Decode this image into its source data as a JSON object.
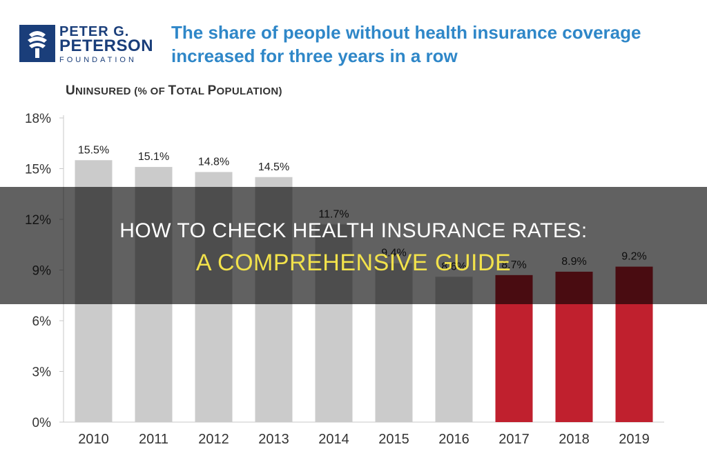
{
  "header": {
    "logo_line1": "PETER G.",
    "logo_line2": "PETERSON",
    "logo_line3": "FOUNDATION",
    "headline_line1": "The share of people without health insurance coverage",
    "headline_line2": "increased for three years in a row"
  },
  "banner": {
    "line1": "HOW TO CHECK HEALTH INSURANCE RATES:",
    "line2": "A COMPREHENSIVE GUIDE"
  },
  "colors": {
    "gray_bar": "#cbcbcb",
    "red_bar": "#c0202e",
    "headline": "#2f87c8",
    "logo": "#1a3e7a"
  },
  "chart_data": {
    "type": "bar",
    "title": "Uninsured (% of Total Population)",
    "title_parts": [
      "U",
      "NINSURED (% OF ",
      "T",
      "OTAL ",
      "P",
      "OPULATION)"
    ],
    "categories": [
      "2010",
      "2011",
      "2012",
      "2013",
      "2014",
      "2015",
      "2016",
      "2017",
      "2018",
      "2019"
    ],
    "values": [
      15.5,
      15.1,
      14.8,
      14.5,
      11.7,
      9.4,
      8.6,
      8.7,
      8.9,
      9.2
    ],
    "data_labels": [
      "15.5%",
      "15.1%",
      "14.8%",
      "14.5%",
      "11.7%",
      "9.4%",
      "8.6%",
      "8.7%",
      "8.9%",
      "9.2%"
    ],
    "highlight": [
      false,
      false,
      false,
      false,
      false,
      false,
      false,
      true,
      true,
      true
    ],
    "yticks": [
      0,
      3,
      6,
      9,
      12,
      15,
      18
    ],
    "ytick_labels": [
      "0%",
      "3%",
      "6%",
      "9%",
      "12%",
      "15%",
      "18%"
    ],
    "ylim": [
      0,
      18
    ],
    "grid": false
  }
}
